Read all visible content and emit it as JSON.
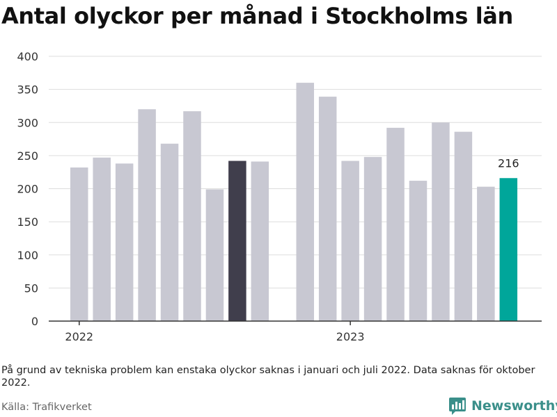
{
  "title": "Antal olyckor per månad i Stockholms län",
  "note": "På grund av tekniska problem kan enstaka olyckor saknas i januari och juli 2022. Data saknas för oktober 2022.",
  "source": "Källa: Trafikverket",
  "brand": {
    "name": "Newsworthy",
    "color": "#3a8f8a"
  },
  "colors": {
    "default": "#c8c8d2",
    "highlight_2022": "#403e4c",
    "highlight_latest": "#00a69a",
    "grid": "#dddddd",
    "axis": "#333333"
  },
  "chart_data": {
    "type": "bar",
    "categories": [
      "2022-01",
      "2022-02",
      "2022-03",
      "2022-04",
      "2022-05",
      "2022-06",
      "2022-07",
      "2022-08",
      "2022-09",
      "2022-10",
      "2022-11",
      "2022-12",
      "2023-01",
      "2023-02",
      "2023-03",
      "2023-04",
      "2023-05",
      "2023-06",
      "2023-07",
      "2023-08",
      "2023-09",
      "2023-10"
    ],
    "values": [
      232,
      247,
      238,
      320,
      268,
      317,
      199,
      242,
      241,
      null,
      360,
      339,
      242,
      248,
      292,
      212,
      300,
      286,
      203,
      216,
      null,
      null
    ],
    "year_ticks": [
      "2022",
      "2023"
    ],
    "yticks": [
      0,
      50,
      100,
      150,
      200,
      250,
      300,
      350,
      400
    ],
    "ylim": [
      0,
      400
    ],
    "highlights": {
      "2022-08": "highlight_2022",
      "2023-08": "highlight_latest"
    },
    "data_labels": {
      "2023-08": "216"
    },
    "grid": true
  }
}
